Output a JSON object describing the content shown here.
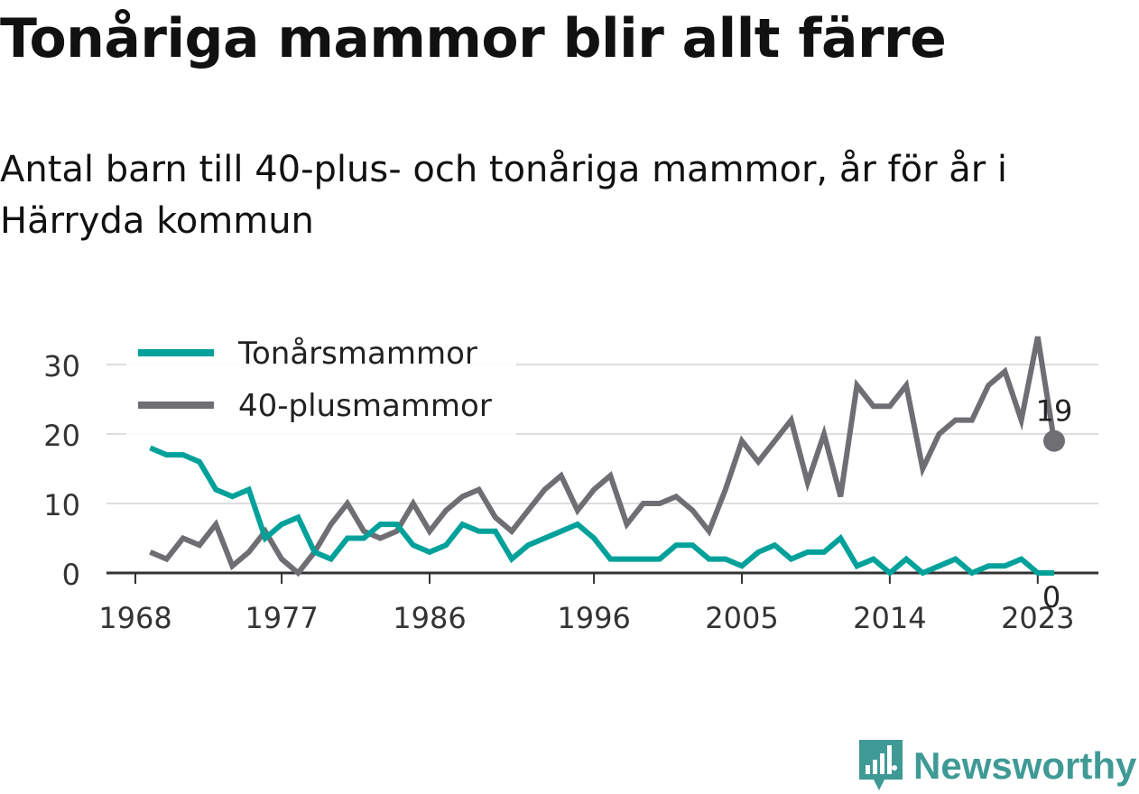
{
  "title": "Tonåriga mammor blir allt färre",
  "subtitle": "Antal barn till 40-plus- och tonåriga mammor, år för år i Härryda kommun",
  "brand": {
    "name": "Newsworthy",
    "icon": "newsworthy-logo-icon",
    "color": "#3f9a96"
  },
  "chart_data": {
    "type": "line",
    "x_ticks": [
      "1968",
      "1977",
      "1986",
      "1996",
      "2005",
      "2014",
      "2023"
    ],
    "y_ticks": [
      0,
      10,
      20,
      30
    ],
    "ylim": [
      0,
      35
    ],
    "grid": true,
    "legend": "top-left",
    "x": [
      1969,
      1970,
      1971,
      1972,
      1973,
      1974,
      1975,
      1976,
      1977,
      1978,
      1979,
      1980,
      1981,
      1982,
      1983,
      1984,
      1985,
      1986,
      1987,
      1988,
      1989,
      1990,
      1991,
      1992,
      1993,
      1994,
      1995,
      1996,
      1997,
      1998,
      1999,
      2000,
      2001,
      2002,
      2003,
      2004,
      2005,
      2006,
      2007,
      2008,
      2009,
      2010,
      2011,
      2012,
      2013,
      2014,
      2015,
      2016,
      2017,
      2018,
      2019,
      2020,
      2021,
      2022,
      2023,
      2024
    ],
    "series": [
      {
        "name": "Tonårsmammor",
        "color": "#00a19a",
        "values": [
          18,
          17,
          17,
          16,
          12,
          11,
          12,
          5,
          7,
          8,
          3,
          2,
          5,
          5,
          7,
          7,
          4,
          3,
          4,
          7,
          6,
          6,
          2,
          4,
          5,
          6,
          7,
          5,
          2,
          2,
          2,
          2,
          4,
          4,
          2,
          2,
          1,
          3,
          4,
          2,
          3,
          3,
          5,
          1,
          2,
          0,
          2,
          0,
          1,
          2,
          0,
          1,
          1,
          2,
          0,
          0
        ],
        "end_label": "0"
      },
      {
        "name": "40-plusmammor",
        "color": "#6e6e73",
        "values": [
          3,
          2,
          5,
          4,
          7,
          1,
          3,
          6,
          2,
          0,
          3,
          7,
          10,
          6,
          5,
          6,
          10,
          6,
          9,
          11,
          12,
          8,
          6,
          9,
          12,
          14,
          9,
          12,
          14,
          7,
          10,
          10,
          11,
          9,
          6,
          12,
          19,
          16,
          19,
          22,
          13,
          20,
          11,
          27,
          24,
          24,
          27,
          15,
          20,
          22,
          22,
          27,
          29,
          22,
          34,
          19
        ],
        "end_label": "19"
      }
    ]
  }
}
